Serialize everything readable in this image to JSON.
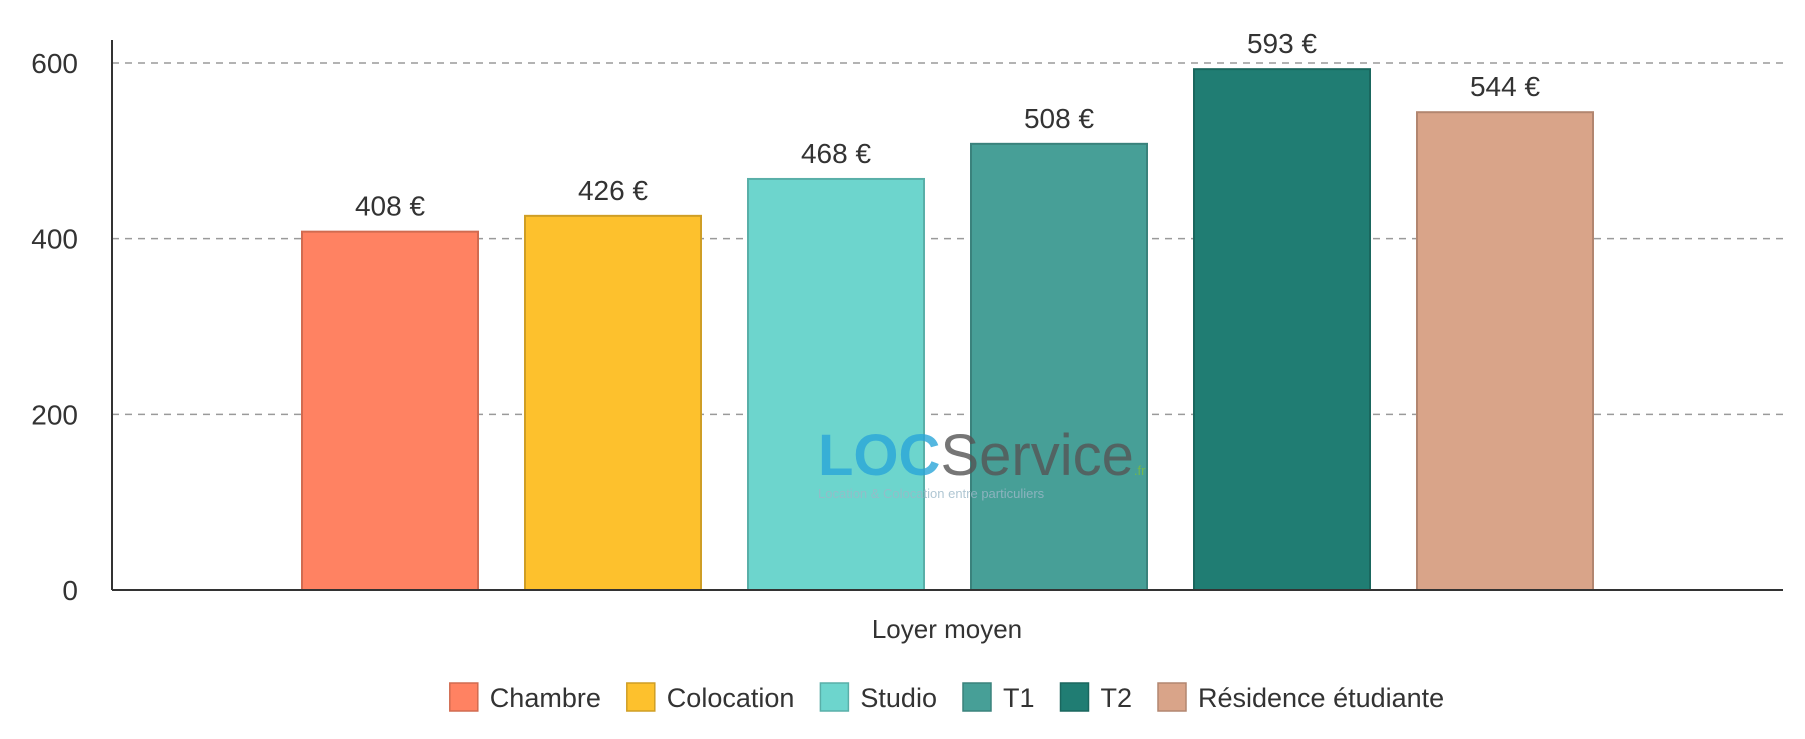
{
  "chart_data": {
    "type": "bar",
    "categories": [
      "Loyer moyen"
    ],
    "xlabel": "Loyer moyen",
    "ylabel": "",
    "ylim": [
      0,
      625
    ],
    "yticks": [
      0,
      200,
      400,
      600
    ],
    "grid": true,
    "legend_position": "bottom",
    "series": [
      {
        "name": "Chambre",
        "values": [
          408
        ],
        "label": "408 €",
        "color": "#FF8262"
      },
      {
        "name": "Colocation",
        "values": [
          426
        ],
        "label": "426 €",
        "color": "#FDC12D"
      },
      {
        "name": "Studio",
        "values": [
          468
        ],
        "label": "468 €",
        "color": "#6DD5CD"
      },
      {
        "name": "T1",
        "values": [
          508
        ],
        "label": "508 €",
        "color": "#479F97"
      },
      {
        "name": "T2",
        "values": [
          593
        ],
        "label": "593 €",
        "color": "#207D73"
      },
      {
        "name": "Résidence étudiante",
        "values": [
          544
        ],
        "label": "544 €",
        "color": "#D9A489"
      }
    ]
  },
  "watermark": {
    "loc": "LOC",
    "service": "Service",
    "suffix": ".fr",
    "tagline": "Location & Colocation entre particuliers"
  }
}
